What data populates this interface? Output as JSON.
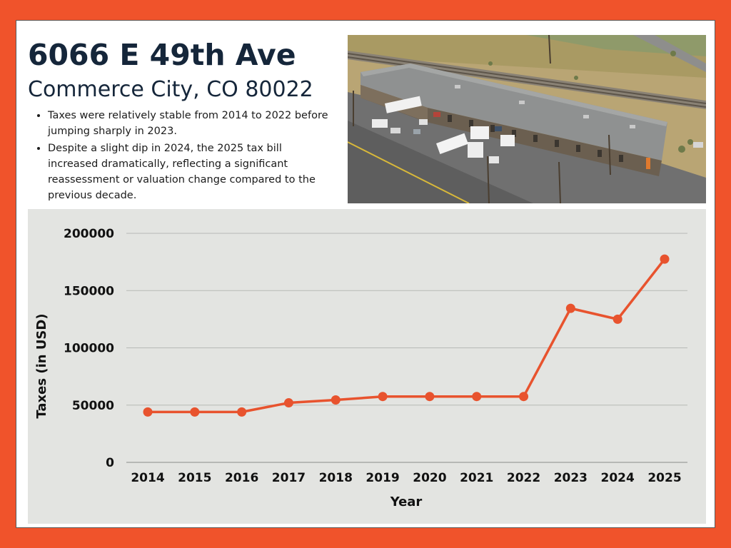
{
  "header": {
    "title": "6066 E 49th Ave",
    "subtitle": "Commerce City, CO 80022"
  },
  "bullets": [
    "Taxes were relatively stable from 2014 to 2022 before jumping sharply in 2023.",
    "Despite a slight dip in 2024, the 2025 tax bill increased dramatically, reflecting a significant reassessment or valuation change compared to the previous decade."
  ],
  "photo": {
    "subject": "aerial-warehouse-photo"
  },
  "colors": {
    "border": "#f0532b",
    "title": "#15263a",
    "line": "#e8532e",
    "panel": "#e3e4e1",
    "grid": "#b7b9b6"
  },
  "chart_data": {
    "type": "line",
    "x": [
      "2014",
      "2015",
      "2016",
      "2017",
      "2018",
      "2019",
      "2020",
      "2021",
      "2022",
      "2023",
      "2024",
      "2025"
    ],
    "series": [
      {
        "values": [
          44000,
          44000,
          44000,
          52000,
          54500,
          57500,
          57500,
          57500,
          57500,
          134500,
          125000,
          177500
        ]
      }
    ],
    "xlabel": "Year",
    "ylabel": "Taxes (in USD)",
    "ylim": [
      0,
      200000
    ],
    "yticks": [
      0,
      50000,
      100000,
      150000,
      200000
    ],
    "grid": true,
    "legend": "none"
  }
}
